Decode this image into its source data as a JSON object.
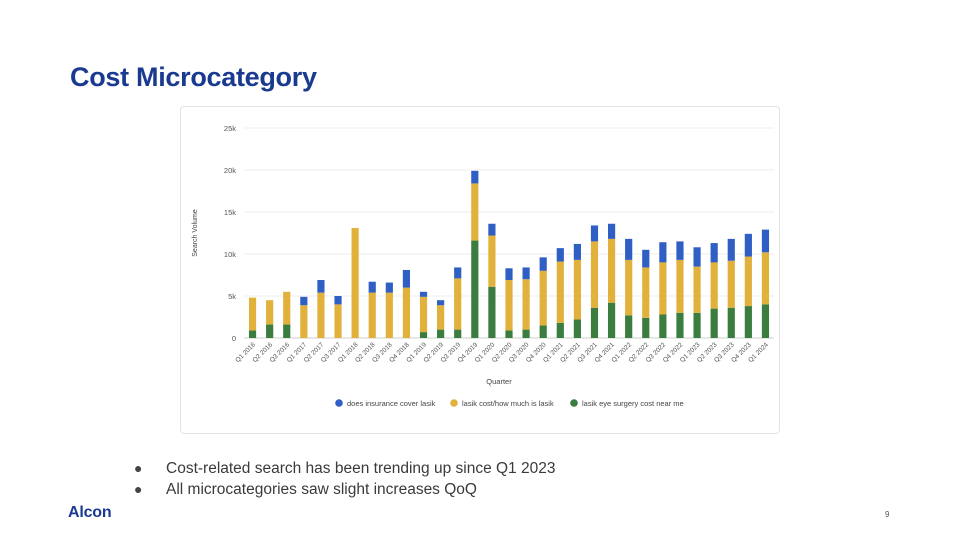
{
  "slide": {
    "title": "Cost Microcategory",
    "bullets": [
      "Cost-related search has been trending up since Q1 2023",
      "All microcategories saw slight increases QoQ"
    ],
    "logo": "Alcon",
    "page_number": "9"
  },
  "colors": {
    "blue": "#2f5fc4",
    "gold": "#e2b13c",
    "green": "#3a7d3f",
    "title": "#1a3a8f"
  },
  "chart_data": {
    "type": "bar",
    "stacked": true,
    "xlabel": "Quarter",
    "ylabel": "Search Volume",
    "ylim": [
      0,
      25000
    ],
    "yticks": [
      0,
      5000,
      10000,
      15000,
      20000,
      25000
    ],
    "ytick_labels": [
      "0",
      "5k",
      "10k",
      "15k",
      "20k",
      "25k"
    ],
    "grid": true,
    "legend_position": "bottom",
    "categories": [
      "Q1 2016",
      "Q2 2016",
      "Q3 2016",
      "Q1 2017",
      "Q2 2017",
      "Q3 2017",
      "Q1 2018",
      "Q2 2018",
      "Q3 2018",
      "Q4 2018",
      "Q1 2019",
      "Q2 2019",
      "Q3 2019",
      "Q4 2019",
      "Q1 2020",
      "Q2 2020",
      "Q3 2020",
      "Q4 2020",
      "Q1 2021",
      "Q2 2021",
      "Q3 2021",
      "Q4 2021",
      "Q1 2022",
      "Q2 2022",
      "Q3 2022",
      "Q4 2022",
      "Q1 2023",
      "Q2 2023",
      "Q3 2023",
      "Q4 2023",
      "Q1 2024"
    ],
    "series": [
      {
        "name": "lasik eye surgery cost near me",
        "color": "#3a7d3f",
        "values": [
          900,
          1600,
          1600,
          0,
          0,
          0,
          0,
          0,
          0,
          0,
          700,
          1000,
          1000,
          11600,
          6100,
          900,
          1000,
          1500,
          1800,
          2200,
          3600,
          4200,
          2700,
          2400,
          2800,
          3000,
          3000,
          3500,
          3600,
          3800,
          4000
        ]
      },
      {
        "name": "lasik cost/how much is lasik",
        "color": "#e2b13c",
        "values": [
          3900,
          2900,
          3900,
          3900,
          5400,
          4000,
          13100,
          5400,
          5400,
          6000,
          4200,
          2900,
          6100,
          6800,
          6100,
          6000,
          6000,
          6500,
          7300,
          7100,
          7900,
          7600,
          6600,
          6000,
          6200,
          6300,
          5500,
          5500,
          5600,
          5900,
          6200
        ]
      },
      {
        "name": "does insurance cover lasik",
        "color": "#2f5fc4",
        "values": [
          0,
          0,
          0,
          1000,
          1500,
          1000,
          0,
          1300,
          1200,
          2100,
          600,
          600,
          1300,
          1500,
          1400,
          1400,
          1400,
          1600,
          1600,
          1900,
          1900,
          1800,
          2500,
          2100,
          2400,
          2200,
          2300,
          2300,
          2600,
          2700,
          2700
        ]
      }
    ],
    "legend_order": [
      "does insurance cover lasik",
      "lasik cost/how much is lasik",
      "lasik eye surgery cost near me"
    ]
  }
}
